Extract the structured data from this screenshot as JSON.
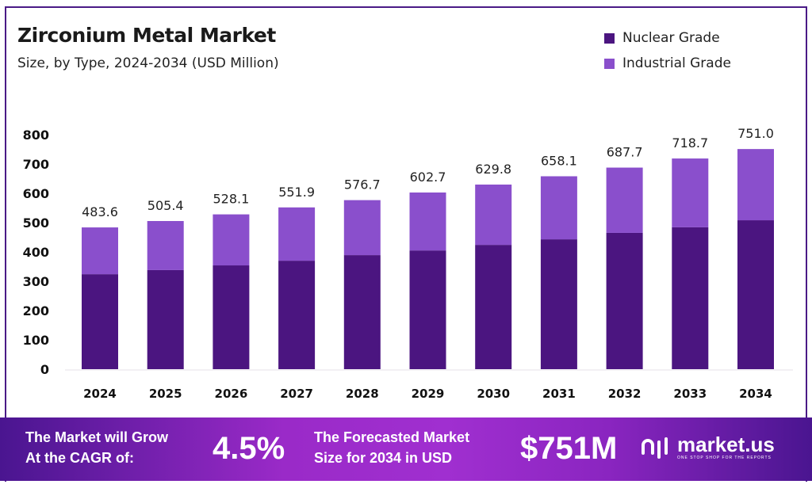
{
  "colors": {
    "nuclear": "#4b1580",
    "industrial": "#8a4fcc",
    "accent": "#4a1a86"
  },
  "chart_data": {
    "type": "bar",
    "stacked": true,
    "title": "Zirconium Metal Market",
    "subtitle": "Size, by Type, 2024-2034 (USD Million)",
    "categories": [
      "2024",
      "2025",
      "2026",
      "2027",
      "2028",
      "2029",
      "2030",
      "2031",
      "2032",
      "2033",
      "2034"
    ],
    "series": [
      {
        "name": "Nuclear Grade",
        "values": [
          324,
          338,
          354,
          370,
          389,
          405,
          424,
          443,
          465,
          484,
          508
        ]
      },
      {
        "name": "Industrial Grade",
        "values": [
          159.6,
          167.4,
          174.1,
          181.9,
          187.7,
          197.7,
          205.8,
          215.1,
          222.7,
          234.7,
          243.0
        ]
      }
    ],
    "totals": [
      "483.6",
      "505.4",
      "528.1",
      "551.9",
      "576.7",
      "602.7",
      "629.8",
      "658.1",
      "687.7",
      "718.7",
      "751.0"
    ],
    "yticks": [
      "0",
      "100",
      "200",
      "300",
      "400",
      "500",
      "600",
      "700",
      "800"
    ],
    "ylim": [
      0,
      800
    ],
    "grid": false,
    "legend": "top-right"
  },
  "footer": {
    "cagr_line1": "The Market will Grow",
    "cagr_line2": "At the CAGR of:",
    "cagr_value": "4.5%",
    "forecast_line1": "The Forecasted Market",
    "forecast_line2": "Size for 2034 in USD",
    "forecast_value": "$751M",
    "logo_name": "market.us",
    "logo_tagline": "ONE STOP SHOP FOR THE REPORTS"
  }
}
